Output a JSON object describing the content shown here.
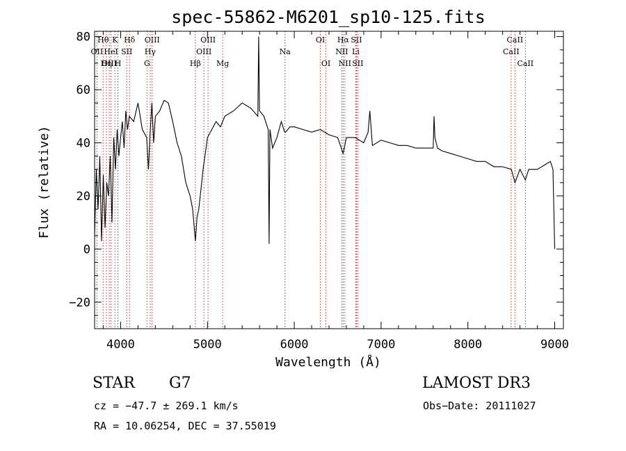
{
  "chart_data": {
    "type": "line",
    "title": "spec-55862-M6201_sp10-125.fits",
    "xlabel": "Wavelength (Å)",
    "ylabel": "Flux (relative)",
    "xlim": [
      3700,
      9100
    ],
    "ylim": [
      -30,
      82
    ],
    "xticks": [
      4000,
      5000,
      6000,
      7000,
      8000,
      9000
    ],
    "xtick_labels": [
      "4000",
      "5000",
      "6000",
      "7000",
      "8000",
      "9000"
    ],
    "yticks": [
      -20,
      0,
      20,
      40,
      60,
      80
    ],
    "ytick_labels": [
      "−20",
      "0",
      "20",
      "40",
      "60",
      "80"
    ],
    "series": [
      {
        "name": "flux",
        "x": [
          3700,
          3720,
          3740,
          3760,
          3780,
          3800,
          3820,
          3840,
          3860,
          3880,
          3900,
          3920,
          3940,
          3960,
          3980,
          4000,
          4020,
          4040,
          4060,
          4080,
          4100,
          4150,
          4200,
          4250,
          4300,
          4320,
          4340,
          4360,
          4380,
          4400,
          4450,
          4500,
          4550,
          4600,
          4650,
          4700,
          4750,
          4800,
          4830,
          4861,
          4880,
          4900,
          4950,
          5000,
          5050,
          5100,
          5150,
          5200,
          5300,
          5400,
          5500,
          5580,
          5590,
          5600,
          5650,
          5700,
          5710,
          5720,
          5750,
          5800,
          5850,
          5890,
          5900,
          5950,
          6000,
          6100,
          6200,
          6300,
          6400,
          6500,
          6563,
          6600,
          6700,
          6800,
          6850,
          6870,
          6900,
          7000,
          7100,
          7200,
          7300,
          7400,
          7500,
          7600,
          7610,
          7620,
          7650,
          7700,
          7800,
          7900,
          8000,
          8100,
          8200,
          8300,
          8400,
          8500,
          8542,
          8600,
          8662,
          8700,
          8800,
          8900,
          8950,
          8980,
          9000
        ],
        "y": [
          5,
          30,
          15,
          35,
          3,
          28,
          8,
          25,
          20,
          35,
          10,
          42,
          30,
          45,
          35,
          42,
          48,
          38,
          52,
          45,
          50,
          48,
          55,
          45,
          42,
          30,
          44,
          55,
          40,
          50,
          52,
          56,
          55,
          48,
          40,
          35,
          25,
          20,
          15,
          3,
          12,
          15,
          30,
          42,
          45,
          48,
          46,
          50,
          52,
          55,
          53,
          50,
          80,
          52,
          50,
          45,
          2,
          45,
          38,
          42,
          48,
          44,
          44,
          46,
          46,
          45,
          44,
          45,
          43,
          42,
          36,
          42,
          42,
          40,
          44,
          52,
          39,
          41,
          40,
          39,
          39,
          38,
          38,
          38,
          50,
          42,
          38,
          37,
          36,
          35,
          34,
          33,
          33,
          31,
          31,
          30,
          25,
          30,
          26,
          30,
          30,
          32,
          33,
          30,
          0
        ]
      }
    ],
    "line_markers": [
      {
        "label": "Hθ",
        "x": 3798,
        "row": 1
      },
      {
        "label": "OII",
        "x": 3727,
        "row": 2
      },
      {
        "label": "OIII",
        "x": 3869,
        "row": 3
      },
      {
        "label": "Hη",
        "x": 3835,
        "row": 3
      },
      {
        "label": "K",
        "x": 3934,
        "row": 1
      },
      {
        "label": "HeI",
        "x": 3889,
        "row": 2
      },
      {
        "label": "SII",
        "x": 4070,
        "row": 2
      },
      {
        "label": "H",
        "x": 3969,
        "row": 3
      },
      {
        "label": "Hδ",
        "x": 4102,
        "row": 1
      },
      {
        "label": "OIII",
        "x": 4363,
        "row": 1
      },
      {
        "label": "Hγ",
        "x": 4340,
        "row": 2
      },
      {
        "label": "G",
        "x": 4304,
        "row": 3
      },
      {
        "label": "OIII",
        "x": 5007,
        "row": 1
      },
      {
        "label": "OIII",
        "x": 4959,
        "row": 2
      },
      {
        "label": "Hβ",
        "x": 4861,
        "row": 3
      },
      {
        "label": "Mg",
        "x": 5175,
        "row": 3
      },
      {
        "label": "Na",
        "x": 5893,
        "row": 2
      },
      {
        "label": "OI",
        "x": 6300,
        "row": 1
      },
      {
        "label": "OI",
        "x": 6364,
        "row": 3
      },
      {
        "label": "Hα",
        "x": 6563,
        "row": 1
      },
      {
        "label": "SII",
        "x": 6716,
        "row": 1
      },
      {
        "label": "NII",
        "x": 6548,
        "row": 2
      },
      {
        "label": "Li",
        "x": 6708,
        "row": 2
      },
      {
        "label": "NII",
        "x": 6583,
        "row": 3
      },
      {
        "label": "SII",
        "x": 6731,
        "row": 3
      },
      {
        "label": "CaII",
        "x": 8542,
        "row": 1
      },
      {
        "label": "CaII",
        "x": 8498,
        "row": 2
      },
      {
        "label": "CaII",
        "x": 8662,
        "row": 3
      }
    ]
  },
  "info": {
    "object_class": "STAR",
    "subclass": "G7",
    "survey": "LAMOST DR3",
    "cz": "cz = −47.7 ± 269.1 km/s",
    "obs_date": "Obs−Date: 20111027",
    "coords": "RA =  10.06254, DEC =  37.55019"
  }
}
